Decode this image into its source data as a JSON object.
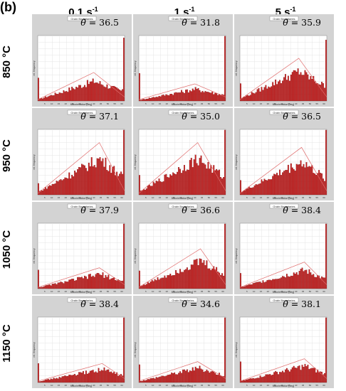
{
  "panel_label": "(b)",
  "columns": [
    {
      "value": "0.1",
      "unit": "s",
      "exp": "-1"
    },
    {
      "value": "1",
      "unit": "s",
      "exp": "-1"
    },
    {
      "value": "5",
      "unit": "s",
      "exp": "-1"
    }
  ],
  "rows": [
    "850 °C",
    "950 °C",
    "1050 °C",
    "1150 °C"
  ],
  "theta_symbol": "θ̃",
  "panel_title": "Grain Boundaries",
  "xlabel": "Misorientation [deg]",
  "ylabel": "rel. frequency",
  "colors": {
    "bar": "#c81e1e",
    "bar_edge": "#5a0000",
    "ref_curve": "#e06a6a",
    "background": "#d3d3d3",
    "plot_bg": "#ffffff"
  },
  "chart_data": [
    {
      "type": "bar",
      "row": "850 °C",
      "col": "0.1 s-1",
      "theta": "= 36.5",
      "xlim": [
        0,
        62
      ],
      "ylim": [
        0,
        0.085
      ],
      "x": "misorientation bins (deg)",
      "spike_low": 0.03,
      "spike_high": 0.082,
      "level": 0.3,
      "peak_pos": 40
    },
    {
      "type": "bar",
      "row": "850 °C",
      "col": "1 s-1",
      "theta": "= 31.8",
      "xlim": [
        0,
        62
      ],
      "ylim": [
        0,
        0.13
      ],
      "spike_low": 0.055,
      "spike_high": 0.13,
      "level": 0.18,
      "peak_pos": 40
    },
    {
      "type": "bar",
      "row": "850 °C",
      "col": "5 s-1",
      "theta": "= 35.9",
      "xlim": [
        0,
        62
      ],
      "ylim": [
        0,
        0.045
      ],
      "spike_low": 0.012,
      "spike_high": 0.042,
      "level": 0.45,
      "peak_pos": 42
    },
    {
      "type": "bar",
      "row": "950 °C",
      "col": "0.1 s-1",
      "theta": "= 37.1",
      "xlim": [
        0,
        62
      ],
      "ylim": [
        0,
        0.04
      ],
      "spike_low": 0.007,
      "spike_high": 0.04,
      "level": 0.55,
      "peak_pos": 44
    },
    {
      "type": "bar",
      "row": "950 °C",
      "col": "1 s-1",
      "theta": "= 35.0",
      "xlim": [
        0,
        62
      ],
      "ylim": [
        0,
        0.04
      ],
      "spike_low": 0.012,
      "spike_high": 0.04,
      "level": 0.55,
      "peak_pos": 42
    },
    {
      "type": "bar",
      "row": "950 °C",
      "col": "5 s-1",
      "theta": "= 36.5",
      "xlim": [
        0,
        62
      ],
      "ylim": [
        0,
        0.045
      ],
      "spike_low": 0.01,
      "spike_high": 0.045,
      "level": 0.5,
      "peak_pos": 44
    },
    {
      "type": "bar",
      "row": "1050 °C",
      "col": "0.1 s-1",
      "theta": "= 37.9",
      "xlim": [
        0,
        62
      ],
      "ylim": [
        0,
        0.14
      ],
      "spike_low": 0.04,
      "spike_high": 0.14,
      "level": 0.22,
      "peak_pos": 44
    },
    {
      "type": "bar",
      "row": "1050 °C",
      "col": "1 s-1",
      "theta": "= 36.6",
      "xlim": [
        0,
        62
      ],
      "ylim": [
        0,
        0.055
      ],
      "spike_low": 0.015,
      "spike_high": 0.055,
      "level": 0.42,
      "peak_pos": 44
    },
    {
      "type": "bar",
      "row": "1050 °C",
      "col": "5 s-1",
      "theta": "= 38.4",
      "xlim": [
        0,
        62
      ],
      "ylim": [
        0,
        0.085
      ],
      "spike_low": 0.02,
      "spike_high": 0.085,
      "level": 0.28,
      "peak_pos": 46
    },
    {
      "type": "bar",
      "row": "1150 °C",
      "col": "0.1 s-1",
      "theta": "= 38.4",
      "xlim": [
        0,
        62
      ],
      "ylim": [
        0,
        0.12
      ],
      "spike_low": 0.035,
      "spike_high": 0.12,
      "level": 0.2,
      "peak_pos": 46
    },
    {
      "type": "bar",
      "row": "1150 °C",
      "col": "1 s-1",
      "theta": "= 34.6",
      "xlim": [
        0,
        62
      ],
      "ylim": [
        0,
        0.11
      ],
      "spike_low": 0.03,
      "spike_high": 0.11,
      "level": 0.22,
      "peak_pos": 42
    },
    {
      "type": "bar",
      "row": "1150 °C",
      "col": "5 s-1",
      "theta": "= 38.1",
      "xlim": [
        0,
        62
      ],
      "ylim": [
        0,
        0.11
      ],
      "spike_low": 0.035,
      "spike_high": 0.11,
      "level": 0.25,
      "peak_pos": 46
    }
  ]
}
